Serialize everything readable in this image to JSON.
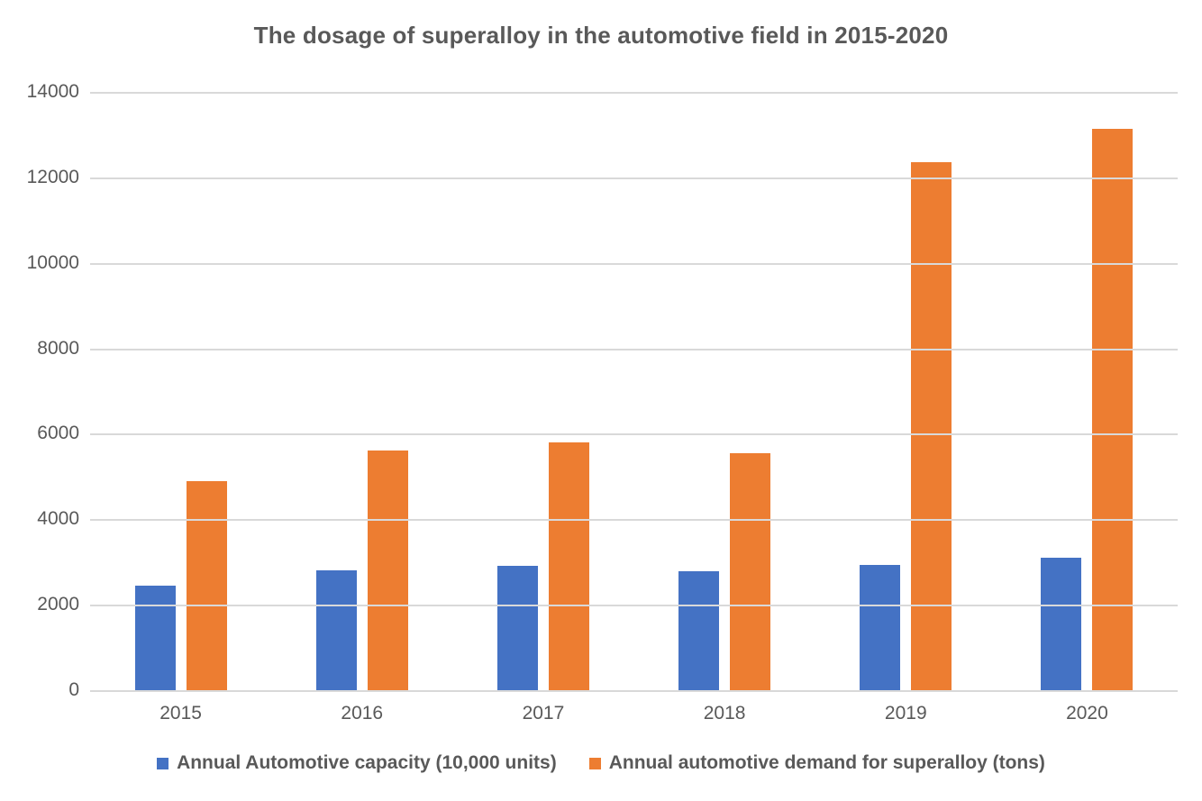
{
  "chart_data": {
    "type": "bar",
    "title": "The dosage of superalloy in the automotive field in 2015-2020",
    "categories": [
      "2015",
      "2016",
      "2017",
      "2018",
      "2019",
      "2020"
    ],
    "series": [
      {
        "name": "Annual Automotive capacity (10,000 units)",
        "color": "#4472C4",
        "values": [
          2450,
          2800,
          2900,
          2780,
          2940,
          3110
        ]
      },
      {
        "name": "Annual automotive demand for superalloy (tons)",
        "color": "#ED7D31",
        "values": [
          4900,
          5600,
          5800,
          5550,
          12360,
          13130
        ]
      }
    ],
    "y_axis": {
      "min": 0,
      "max": 14000,
      "step": 2000,
      "ticks": [
        0,
        2000,
        4000,
        6000,
        8000,
        10000,
        12000,
        14000
      ]
    },
    "grid": true,
    "legend_position": "bottom",
    "colors": {
      "grid": "#D9D9D9",
      "axis": "#D9D9D9",
      "text": "#595959",
      "title": "#595959",
      "background": "#FFFFFF"
    }
  }
}
